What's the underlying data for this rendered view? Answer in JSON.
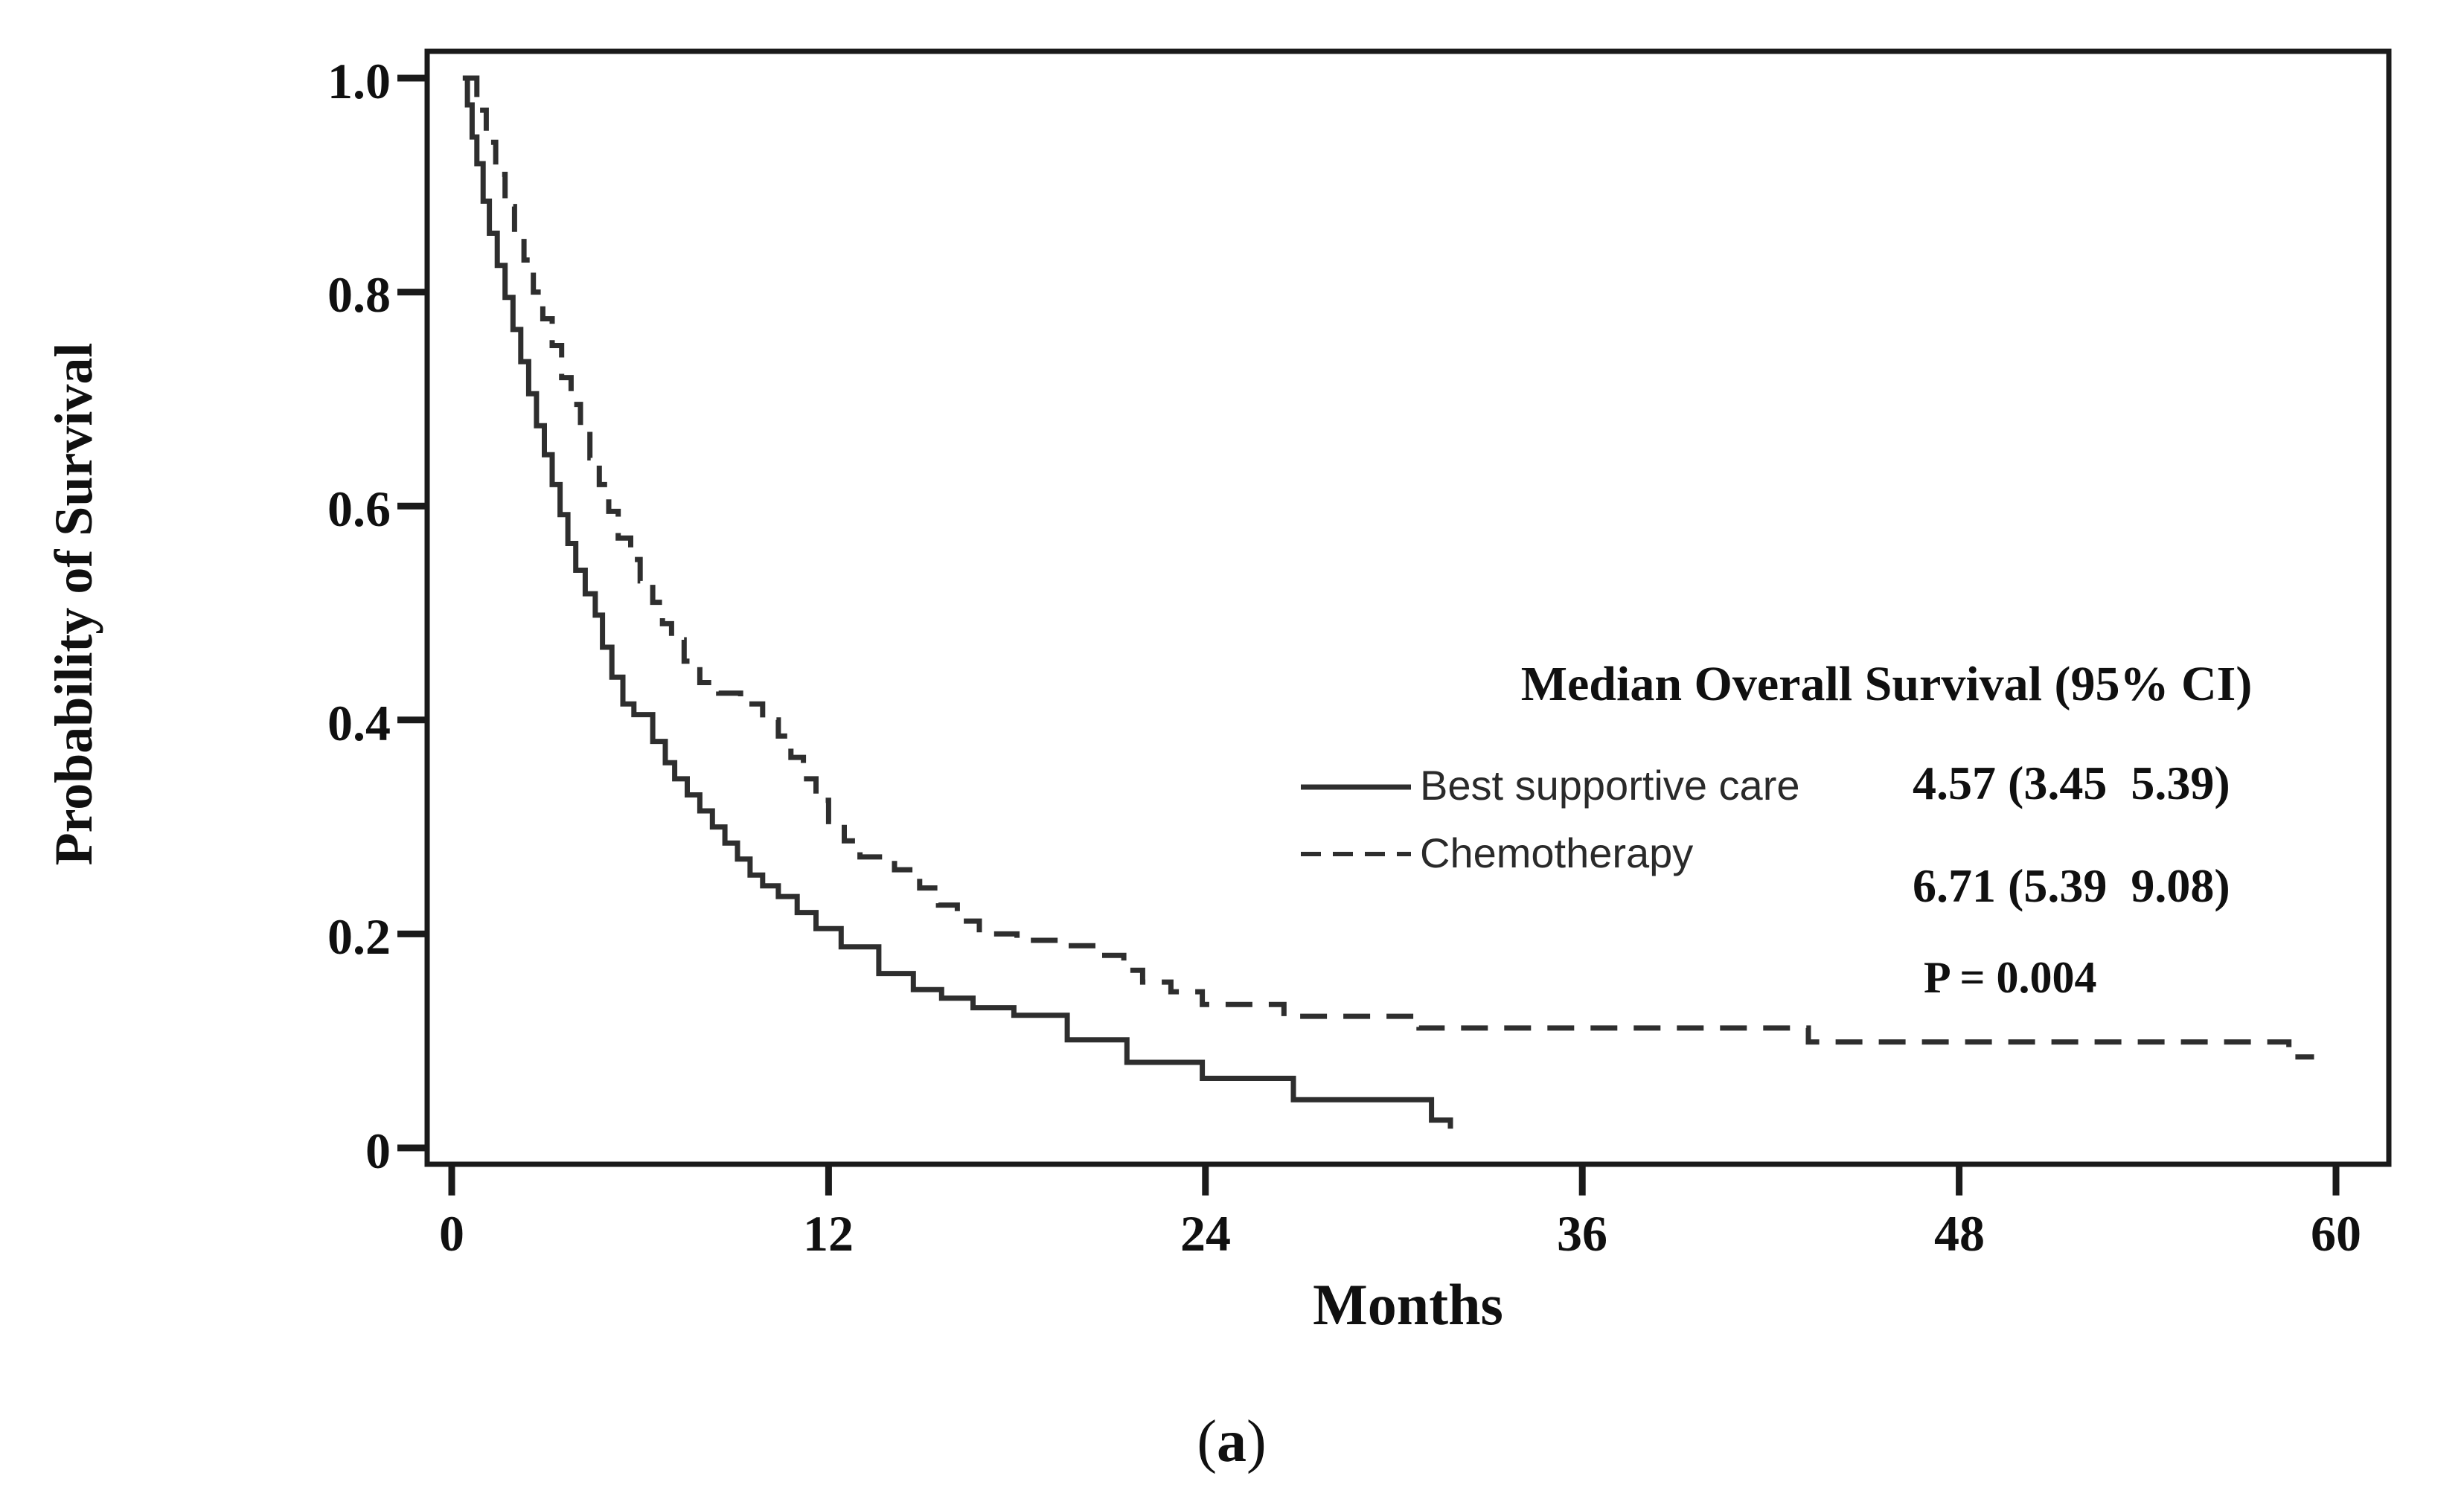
{
  "figure": {
    "caption": {
      "open": "(",
      "letter": "a",
      "close": ")"
    }
  },
  "chart_data": {
    "type": "line",
    "subtype": "kaplan-meier-step-curves",
    "title": "",
    "xlabel": "Months",
    "ylabel": "Probability of Survival",
    "xlim": [
      0,
      61.7
    ],
    "ylim": [
      0,
      1.0
    ],
    "x_ticks": [
      0,
      12,
      24,
      36,
      48,
      60
    ],
    "y_ticks": [
      "1.0",
      "0.8",
      "0.6",
      "0.4",
      "0.2",
      "0"
    ],
    "grid": false,
    "frame": true,
    "line_color": "#2e2e2e",
    "legend": {
      "title": "Median Overall Survival (95% CI)",
      "position": "center-right",
      "items": [
        {
          "label": "Best supportive care",
          "line_style": "solid",
          "median_os": "4.57 (3.45  5.39)"
        },
        {
          "label": "Chemotherapy",
          "line_style": "dashed",
          "median_os": "6.71 (5.39  9.08)"
        }
      ],
      "p_value": "P = 0.004"
    },
    "series": [
      {
        "name": "Best supportive care",
        "style": "solid",
        "points": [
          [
            0.35,
            1.0
          ],
          [
            0.5,
            0.975
          ],
          [
            0.65,
            0.945
          ],
          [
            0.8,
            0.92
          ],
          [
            1.0,
            0.885
          ],
          [
            1.2,
            0.855
          ],
          [
            1.45,
            0.825
          ],
          [
            1.7,
            0.795
          ],
          [
            1.95,
            0.765
          ],
          [
            2.2,
            0.735
          ],
          [
            2.45,
            0.705
          ],
          [
            2.7,
            0.675
          ],
          [
            2.95,
            0.648
          ],
          [
            3.2,
            0.62
          ],
          [
            3.45,
            0.592
          ],
          [
            3.7,
            0.565
          ],
          [
            3.95,
            0.54
          ],
          [
            4.25,
            0.518
          ],
          [
            4.57,
            0.498
          ],
          [
            4.8,
            0.468
          ],
          [
            5.1,
            0.44
          ],
          [
            5.45,
            0.415
          ],
          [
            5.8,
            0.405
          ],
          [
            6.4,
            0.38
          ],
          [
            6.8,
            0.36
          ],
          [
            7.1,
            0.345
          ],
          [
            7.5,
            0.33
          ],
          [
            7.9,
            0.315
          ],
          [
            8.3,
            0.3
          ],
          [
            8.7,
            0.285
          ],
          [
            9.1,
            0.27
          ],
          [
            9.5,
            0.255
          ],
          [
            9.9,
            0.245
          ],
          [
            10.4,
            0.235
          ],
          [
            11.0,
            0.22
          ],
          [
            11.6,
            0.205
          ],
          [
            12.4,
            0.188
          ],
          [
            13.6,
            0.163
          ],
          [
            14.7,
            0.148
          ],
          [
            15.6,
            0.14
          ],
          [
            16.6,
            0.131
          ],
          [
            17.9,
            0.124
          ],
          [
            19.6,
            0.101
          ],
          [
            21.5,
            0.08
          ],
          [
            23.9,
            0.065
          ],
          [
            26.8,
            0.045
          ],
          [
            31.2,
            0.026
          ],
          [
            31.8,
            0.018
          ]
        ]
      },
      {
        "name": "Chemotherapy",
        "style": "dashed",
        "points": [
          [
            0.55,
            1.0
          ],
          [
            0.8,
            0.97
          ],
          [
            1.1,
            0.94
          ],
          [
            1.4,
            0.91
          ],
          [
            1.7,
            0.88
          ],
          [
            2.0,
            0.855
          ],
          [
            2.3,
            0.83
          ],
          [
            2.6,
            0.8
          ],
          [
            2.9,
            0.775
          ],
          [
            3.2,
            0.75
          ],
          [
            3.5,
            0.72
          ],
          [
            3.8,
            0.695
          ],
          [
            4.1,
            0.67
          ],
          [
            4.4,
            0.645
          ],
          [
            4.7,
            0.62
          ],
          [
            5.0,
            0.595
          ],
          [
            5.3,
            0.57
          ],
          [
            5.7,
            0.55
          ],
          [
            6.0,
            0.53
          ],
          [
            6.4,
            0.51
          ],
          [
            6.71,
            0.49
          ],
          [
            7.0,
            0.475
          ],
          [
            7.4,
            0.455
          ],
          [
            7.9,
            0.435
          ],
          [
            8.5,
            0.425
          ],
          [
            9.2,
            0.415
          ],
          [
            9.9,
            0.4
          ],
          [
            10.4,
            0.385
          ],
          [
            10.8,
            0.365
          ],
          [
            11.2,
            0.345
          ],
          [
            11.6,
            0.325
          ],
          [
            12.0,
            0.305
          ],
          [
            12.5,
            0.287
          ],
          [
            13.0,
            0.272
          ],
          [
            14.1,
            0.26
          ],
          [
            14.9,
            0.243
          ],
          [
            15.5,
            0.227
          ],
          [
            16.1,
            0.212
          ],
          [
            16.8,
            0.2
          ],
          [
            18.0,
            0.194
          ],
          [
            19.3,
            0.189
          ],
          [
            20.5,
            0.18
          ],
          [
            21.4,
            0.166
          ],
          [
            22.0,
            0.155
          ],
          [
            22.9,
            0.146
          ],
          [
            23.9,
            0.134
          ],
          [
            26.5,
            0.123
          ],
          [
            30.8,
            0.112
          ],
          [
            43.2,
            0.099
          ],
          [
            58.5,
            0.085
          ],
          [
            59.3,
            0.085
          ]
        ]
      }
    ]
  }
}
